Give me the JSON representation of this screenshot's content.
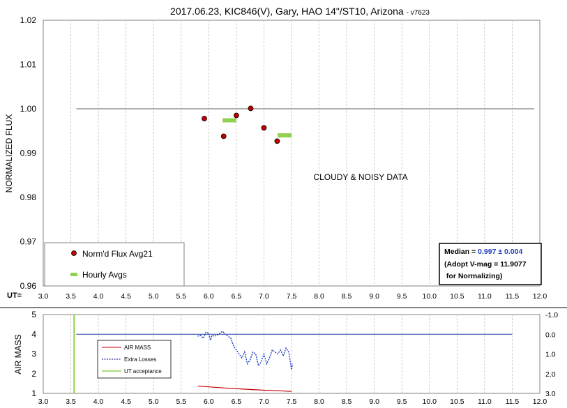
{
  "chart_data": [
    {
      "type": "scatter",
      "title": "2017.06.23, KIC846(V), Gary, HAO 14\"/ST10, Arizona",
      "title_suffix": "- v7623",
      "ylabel": "NORMALIZED FLUX",
      "xlabel_prefix": "UT=",
      "xlim": [
        3.0,
        12.0
      ],
      "ylim": [
        0.96,
        1.02
      ],
      "xticks": [
        "3.0",
        "3.5",
        "4.0",
        "4.5",
        "5.0",
        "5.5",
        "6.0",
        "6.5",
        "7.0",
        "7.5",
        "8.0",
        "8.5",
        "9.0",
        "9.5",
        "10.0",
        "10.5",
        "11.0",
        "11.5",
        "12.0"
      ],
      "yticks": [
        "0.96",
        "0.97",
        "0.98",
        "0.99",
        "1.00",
        "1.01",
        "1.02"
      ],
      "grid": "vertical",
      "reference_line": {
        "x": [
          3.6,
          11.9
        ],
        "y": 1.0
      },
      "series": [
        {
          "name": "Norm'd Flux Avg21",
          "color": "#c00000",
          "points": [
            [
              5.92,
              0.9978
            ],
            [
              6.27,
              0.9938
            ],
            [
              6.5,
              0.9985
            ],
            [
              6.76,
              1.0001
            ],
            [
              7.0,
              0.9957
            ],
            [
              7.24,
              0.9927
            ]
          ]
        },
        {
          "name": "Hourly Avgs",
          "color": "#92d050",
          "segments": [
            [
              6.25,
              6.5,
              0.9974
            ],
            [
              7.25,
              7.5,
              0.994
            ]
          ]
        }
      ],
      "annotation": "CLOUDY & NOISY DATA",
      "legend_position": "bottom-left",
      "info_box": {
        "median_label": "Median = ",
        "median_value": "0.997 ± 0.004",
        "line2": "(Adopt V-mag = 11.9077",
        "line3": " for Normalizing)"
      }
    },
    {
      "type": "line",
      "ylabel": "AIR MASS",
      "xlim": [
        3.0,
        12.0
      ],
      "ylim": [
        1,
        5
      ],
      "y2lim": [
        3.0,
        -1.0
      ],
      "xticks": [
        "3.0",
        "3.5",
        "4.0",
        "4.5",
        "5.0",
        "5.5",
        "6.0",
        "6.5",
        "7.0",
        "7.5",
        "8.0",
        "8.5",
        "9.0",
        "9.5",
        "10.0",
        "10.5",
        "11.0",
        "11.5",
        "12.0"
      ],
      "yticks": [
        "1",
        "2",
        "3",
        "4",
        "5"
      ],
      "y2ticks": [
        "3.0",
        "2.0",
        "1.0",
        "0.0",
        "-1.0"
      ],
      "grid": "vertical",
      "reference_line": {
        "x": [
          3.6,
          11.5
        ],
        "y2": 0.0
      },
      "ut_acceptance_x": 3.56,
      "series": [
        {
          "name": "AIR MASS",
          "color": "#c00000",
          "x": [
            5.8,
            6.0,
            6.2,
            6.4,
            6.6,
            6.8,
            7.0,
            7.2,
            7.5
          ],
          "y": [
            1.37,
            1.33,
            1.29,
            1.25,
            1.22,
            1.19,
            1.16,
            1.14,
            1.1
          ]
        },
        {
          "name": "Extra Losses",
          "color": "#1f3fbf",
          "axis": "y2",
          "x": [
            5.8,
            5.85,
            5.9,
            5.95,
            6.0,
            6.03,
            6.06,
            6.1,
            6.15,
            6.2,
            6.25,
            6.3,
            6.35,
            6.4,
            6.45,
            6.5,
            6.55,
            6.6,
            6.65,
            6.7,
            6.75,
            6.8,
            6.85,
            6.9,
            6.95,
            7.0,
            7.05,
            7.1,
            7.15,
            7.2,
            7.25,
            7.3,
            7.35,
            7.4,
            7.45,
            7.5,
            7.52
          ],
          "y": [
            0.1,
            0.05,
            0.2,
            -0.1,
            -0.05,
            0.3,
            0.05,
            0.1,
            0.05,
            -0.05,
            -0.15,
            0.0,
            0.1,
            0.2,
            0.6,
            0.8,
            1.0,
            1.2,
            0.9,
            1.5,
            1.3,
            0.9,
            1.0,
            1.6,
            1.4,
            1.0,
            1.5,
            1.2,
            0.8,
            0.9,
            1.0,
            0.8,
            1.1,
            0.7,
            0.9,
            1.8,
            1.5
          ]
        },
        {
          "name": "UT acceptance",
          "color": "#92d050"
        }
      ],
      "legend_position": "left"
    }
  ]
}
